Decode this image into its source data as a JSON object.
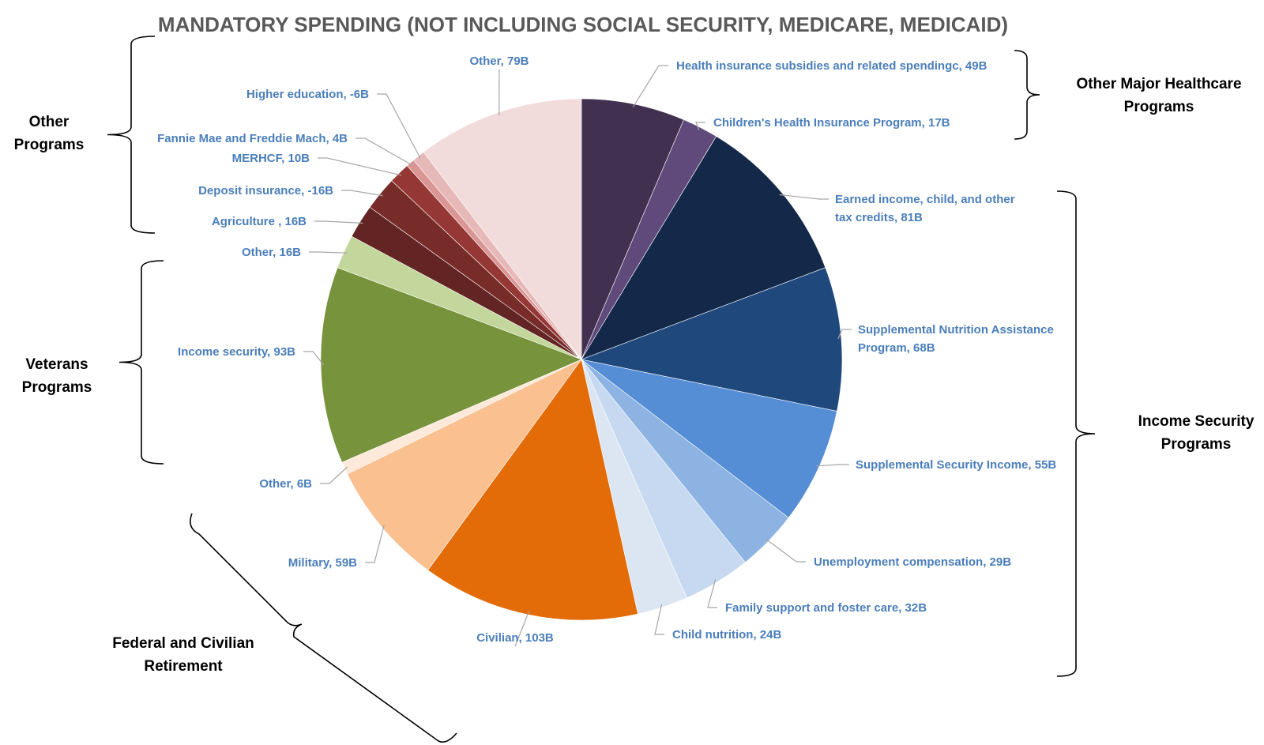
{
  "chart_data": {
    "type": "pie",
    "title": "MANDATORY SPENDING (NOT INCLUDING SOCIAL SECURITY, MEDICARE, MEDICAID)",
    "slices": [
      {
        "label": "Health insurance subsidies and related spendingc, 49B",
        "value": 49,
        "color": "#41304f"
      },
      {
        "label": "Children's Health Insurance Program, 17B",
        "value": 17,
        "color": "#604a7b"
      },
      {
        "label": "Earned income, child, and other tax credits, 81B",
        "value": 81,
        "color": "#14284a"
      },
      {
        "label": "Supplemental Nutrition Assistance Program, 68B",
        "value": 68,
        "color": "#1f497d"
      },
      {
        "label": "Supplemental Security Income, 55B",
        "value": 55,
        "color": "#558ed5"
      },
      {
        "label": "Unemployment compensation, 29B",
        "value": 29,
        "color": "#8db3e2"
      },
      {
        "label": "Family support and foster care, 32B",
        "value": 32,
        "color": "#c6d9f1"
      },
      {
        "label": "Child nutrition, 24B",
        "value": 24,
        "color": "#dce6f2"
      },
      {
        "label": "Civilian, 103B",
        "value": 103,
        "color": "#e36c09"
      },
      {
        "label": "Military, 59B",
        "value": 59,
        "color": "#fac090"
      },
      {
        "label": "Other, 6B",
        "value": 6,
        "color": "#fde9d9"
      },
      {
        "label": "Income security, 93B",
        "value": 93,
        "color": "#77933c"
      },
      {
        "label": "Other, 16B",
        "value": 16,
        "color": "#c3d69b"
      },
      {
        "label": "Agriculture , 16B",
        "value": 16,
        "color": "#632523"
      },
      {
        "label": "Deposit insurance, -16B",
        "value": -16,
        "color": "#772c2a"
      },
      {
        "label": "MERHCF,  10B",
        "value": 10,
        "color": "#953735"
      },
      {
        "label": "Fannie Mae and Freddie Mach, 4B",
        "value": 4,
        "color": "#d99694"
      },
      {
        "label": "Higher education, -6B",
        "value": -6,
        "color": "#e6b9b8"
      },
      {
        "label": "Other, 79B",
        "value": 79,
        "color": "#f2dcdb"
      }
    ],
    "groups": [
      {
        "label": "Other Major Healthcare Programs",
        "members": [
          "Health insurance subsidies and related spendingc, 49B",
          "Children's Health Insurance Program, 17B"
        ]
      },
      {
        "label": "Income Security Programs",
        "members": [
          "Earned income, child, and other tax credits, 81B",
          "Supplemental Nutrition Assistance Program, 68B",
          "Supplemental Security Income, 55B",
          "Unemployment compensation, 29B",
          "Family support and foster care, 32B",
          "Child nutrition, 24B"
        ]
      },
      {
        "label": "Federal and Civilian Retirement",
        "members": [
          "Civilian, 103B",
          "Military, 59B",
          "Other, 6B"
        ]
      },
      {
        "label": "Veterans Programs",
        "members": [
          "Income security, 93B",
          "Other, 16B"
        ]
      },
      {
        "label": "Other Programs",
        "members": [
          "Agriculture , 16B",
          "Deposit insurance, -16B",
          "MERHCF,  10B",
          "Fannie Mae and Freddie Mach, 4B",
          "Higher education, -6B",
          "Other, 79B"
        ]
      }
    ]
  }
}
